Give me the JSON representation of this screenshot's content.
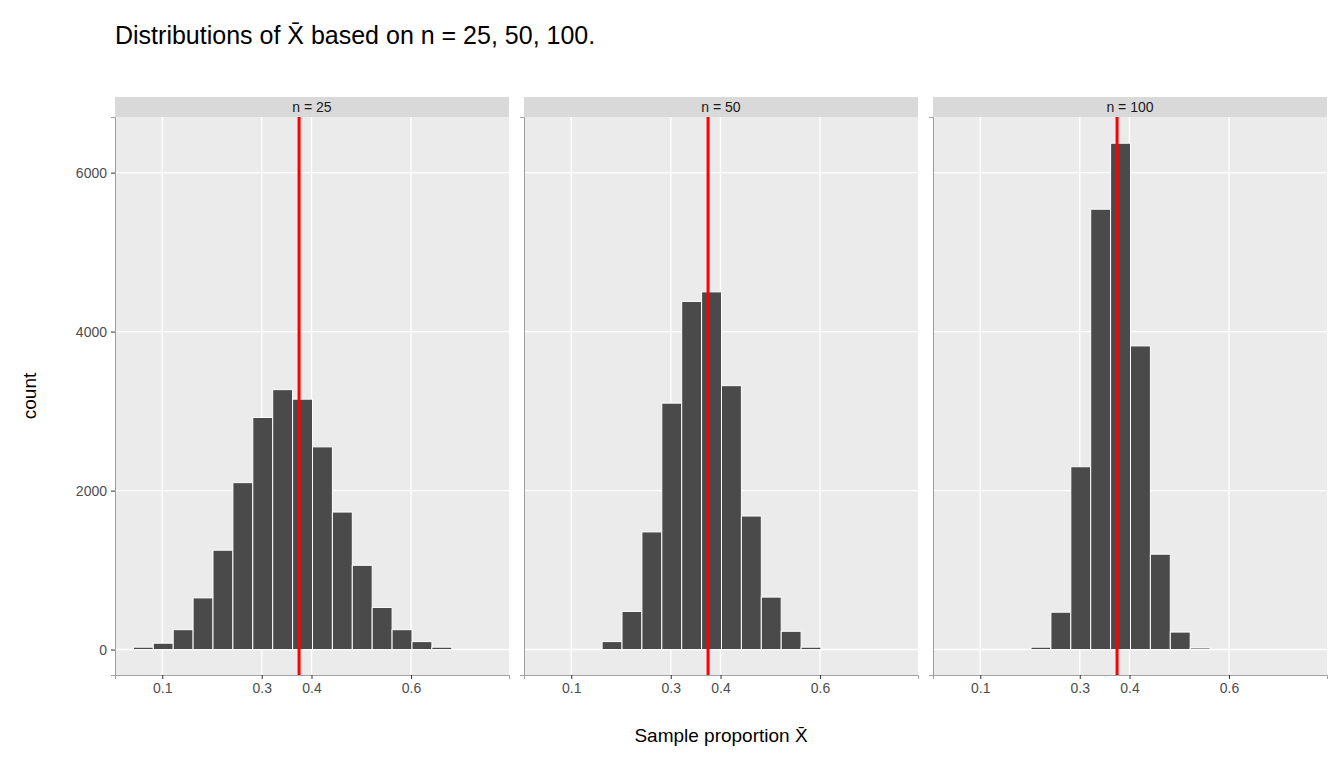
{
  "chart_data": {
    "type": "histogram",
    "title": "Distributions of X̄ based on n = 25, 50, 100.",
    "xlabel": "Sample proportion X̄",
    "ylabel": "count",
    "xlim": [
      0.005,
      0.797
    ],
    "xticks": [
      0.1,
      0.3,
      0.4,
      0.6
    ],
    "ylim": [
      -320,
      6700
    ],
    "yticks": [
      0,
      2000,
      4000,
      6000
    ],
    "grid": true,
    "color": "#4a4a4a",
    "vline": {
      "x": 0.375,
      "color": "#ff0000"
    },
    "panels": [
      {
        "name": "n = 25",
        "bins": [
          0.042,
          0.082,
          0.122,
          0.162,
          0.202,
          0.242,
          0.282,
          0.322,
          0.362,
          0.402,
          0.442,
          0.482,
          0.522,
          0.562,
          0.602,
          0.642,
          0.682
        ],
        "values": [
          30,
          80,
          250,
          650,
          1250,
          2100,
          2920,
          3270,
          3150,
          2550,
          1730,
          1060,
          530,
          250,
          100,
          30
        ]
      },
      {
        "name": "n = 50",
        "bins": [
          0.122,
          0.162,
          0.202,
          0.242,
          0.282,
          0.322,
          0.362,
          0.402,
          0.442,
          0.482,
          0.522,
          0.562,
          0.602,
          0.642
        ],
        "values": [
          10,
          100,
          480,
          1480,
          3100,
          4380,
          4500,
          3320,
          1680,
          660,
          230,
          30,
          10
        ]
      },
      {
        "name": "n = 100",
        "bins": [
          0.202,
          0.242,
          0.282,
          0.322,
          0.362,
          0.402,
          0.442,
          0.482,
          0.522,
          0.562
        ],
        "values": [
          30,
          470,
          2300,
          5540,
          6370,
          3820,
          1200,
          220,
          20
        ]
      }
    ]
  }
}
